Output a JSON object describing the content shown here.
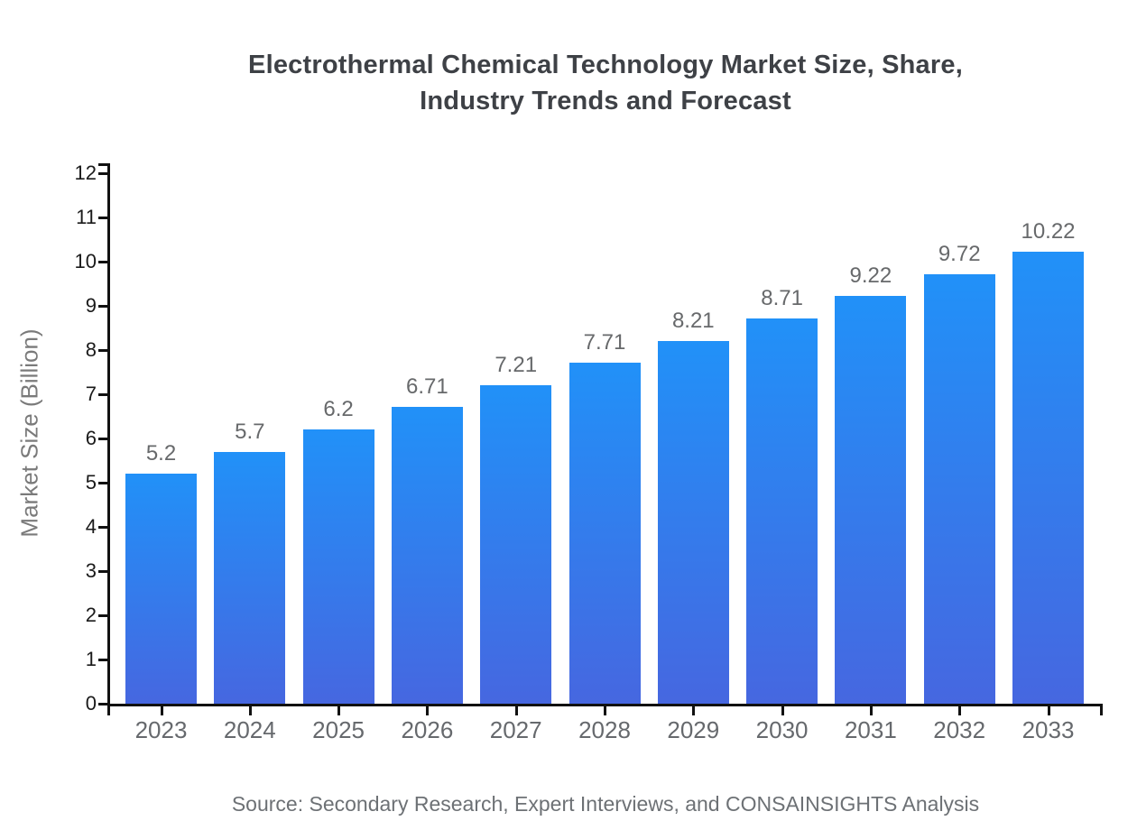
{
  "chart_data": {
    "type": "bar",
    "title": "Electrothermal Chemical Technology Market Size, Share, Industry Trends and Forecast",
    "title_lines": [
      "Electrothermal Chemical Technology Market Size, Share,",
      "Industry Trends and Forecast"
    ],
    "xlabel": "",
    "ylabel": "Market Size (Billion)",
    "categories": [
      "2023",
      "2024",
      "2025",
      "2026",
      "2027",
      "2028",
      "2029",
      "2030",
      "2031",
      "2032",
      "2033"
    ],
    "values": [
      5.2,
      5.7,
      6.2,
      6.71,
      7.21,
      7.71,
      8.21,
      8.71,
      9.22,
      9.72,
      10.22
    ],
    "bar_labels": [
      "5.2",
      "5.7",
      "6.2",
      "6.71",
      "7.21",
      "7.71",
      "8.21",
      "8.71",
      "9.22",
      "9.72",
      "10.22"
    ],
    "ylim": [
      0,
      12
    ],
    "yticks": [
      0,
      1,
      2,
      3,
      4,
      5,
      6,
      7,
      8,
      9,
      10,
      11,
      12
    ],
    "grid": false,
    "legend_position": "none",
    "colors": {
      "bar_gradient_top": "#2191f8",
      "bar_gradient_bottom": "#4667e0",
      "axis": "#111111",
      "title_text": "#3e4146",
      "y_tick_text": "#1a1a1a",
      "x_tick_text": "#66696d",
      "bar_label_text": "#67696b",
      "y_axis_title_text": "#7a7a7a",
      "source_text": "#6d7175"
    }
  },
  "footer": {
    "source": "Source: Secondary Research, Expert Interviews, and CONSAINSIGHTS Analysis"
  }
}
